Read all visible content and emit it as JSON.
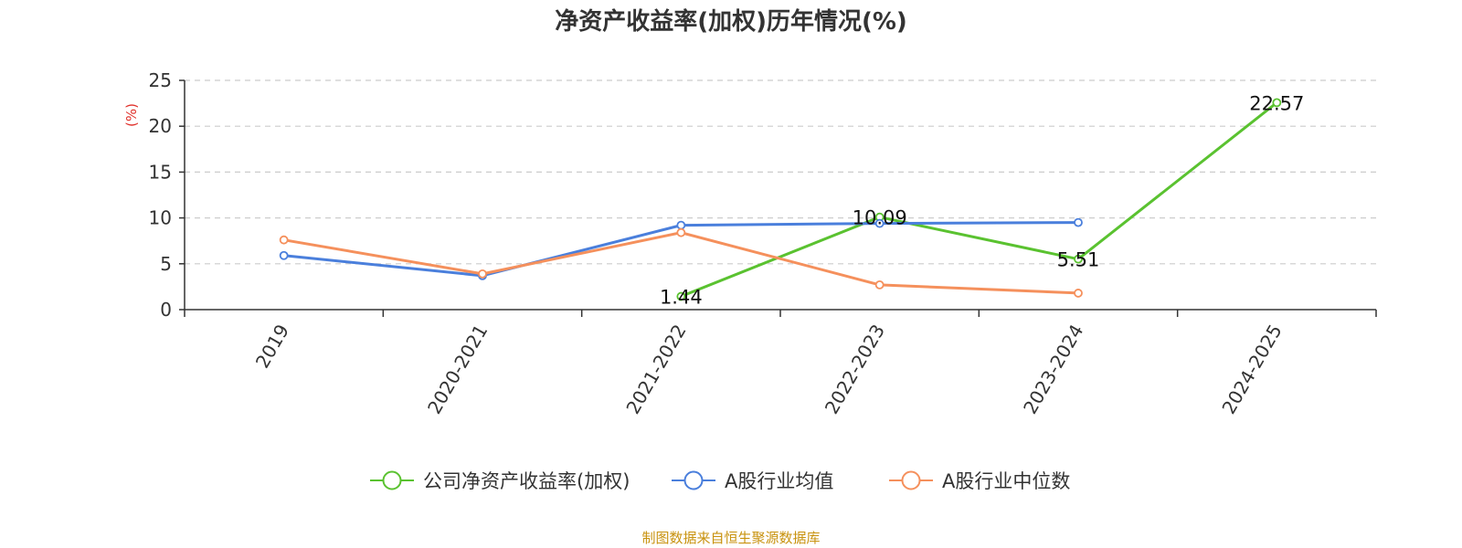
{
  "chart_data": {
    "type": "line",
    "title": "净资产收益率(加权)历年情况(%)",
    "ylabel": "(%)",
    "xlabel": "",
    "ylim": [
      0,
      25
    ],
    "yticks": [
      0,
      5,
      10,
      15,
      20,
      25
    ],
    "grid": true,
    "legend_position": "bottom",
    "categories": [
      "2019",
      "2020-2021",
      "2021-2022",
      "2022-2023",
      "2023-2024",
      "2024-2025"
    ],
    "series": [
      {
        "name": "公司净资产收益率(加权)",
        "color": "#5ac230",
        "values": [
          null,
          null,
          1.44,
          10.09,
          5.51,
          22.57
        ],
        "labels": [
          null,
          null,
          "1.44",
          "10.09",
          "5.51",
          "22.57"
        ]
      },
      {
        "name": "A股行业均值",
        "color": "#4a7fdc",
        "values": [
          5.9,
          3.7,
          9.2,
          9.4,
          9.5,
          null
        ]
      },
      {
        "name": "A股行业中位数",
        "color": "#f5905c",
        "values": [
          7.6,
          3.9,
          8.4,
          2.7,
          1.8,
          null
        ]
      }
    ]
  },
  "source_text": "制图数据来自恒生聚源数据库",
  "source_color": "#c8920e",
  "ylabel_color": "#e0302a"
}
